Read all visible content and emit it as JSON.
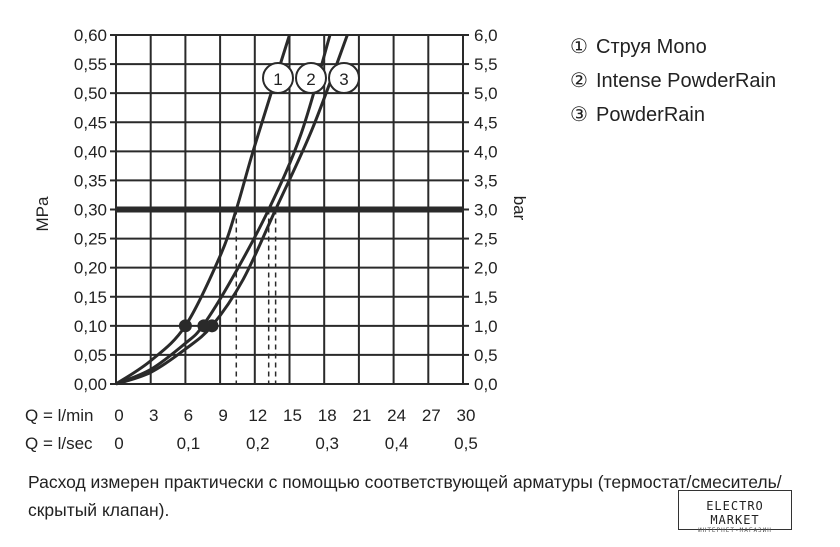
{
  "chart_data": {
    "type": "line",
    "ylabel_left": "MPa",
    "ylabel_right": "bar",
    "ylim": [
      0,
      0.6
    ],
    "xlim": [
      0,
      30
    ],
    "left_ticks": [
      "0,00",
      "0,05",
      "0,10",
      "0,15",
      "0,20",
      "0,25",
      "0,30",
      "0,35",
      "0,40",
      "0,45",
      "0,50",
      "0,55",
      "0,60"
    ],
    "right_ticks": [
      "0,0",
      "0,5",
      "1,0",
      "1,5",
      "2,0",
      "2,5",
      "3,0",
      "3,5",
      "4,0",
      "4,5",
      "5,0",
      "5,5",
      "6,0"
    ],
    "x_row1_label": "Q = l/min",
    "x_row1_ticks": [
      "0",
      "3",
      "6",
      "9",
      "12",
      "15",
      "18",
      "21",
      "24",
      "27",
      "30"
    ],
    "x_row2_label": "Q = l/sec",
    "x_row2_ticks": [
      "0",
      "0,1",
      "0,2",
      "0,3",
      "0,4",
      "0,5"
    ],
    "x_row2_values": [
      0,
      6,
      12,
      18,
      24,
      30
    ],
    "reference_line": 0.3,
    "series": [
      {
        "name": "1",
        "x": [
          0,
          3,
          6,
          9,
          10.4,
          12,
          15
        ],
        "y": [
          0,
          0.04,
          0.1,
          0.22,
          0.3,
          0.41,
          0.6
        ],
        "marker": {
          "x": 6,
          "y": 0.1
        },
        "drop_x": 10.4
      },
      {
        "name": "2",
        "x": [
          0,
          3,
          6,
          7.5,
          10,
          13.2,
          16,
          18.5
        ],
        "y": [
          0,
          0.025,
          0.07,
          0.1,
          0.18,
          0.3,
          0.43,
          0.6
        ],
        "marker": {
          "x": 7.6,
          "y": 0.1
        },
        "drop_x": 13.2
      },
      {
        "name": "3",
        "x": [
          0,
          3,
          6,
          8.3,
          11,
          13.8,
          17,
          20
        ],
        "y": [
          0,
          0.02,
          0.06,
          0.1,
          0.18,
          0.3,
          0.44,
          0.6
        ],
        "marker": {
          "x": 8.3,
          "y": 0.1
        },
        "drop_x": 13.8
      }
    ],
    "grid": true
  },
  "legend": [
    {
      "num": "①",
      "label": "Струя Mono"
    },
    {
      "num": "②",
      "label": "Intense PowderRain"
    },
    {
      "num": "③",
      "label": "PowderRain"
    }
  ],
  "footnote": "Расход измерен практически с помощью соответствующей арматуры (термостат/смеситель/скрытый клапан).",
  "watermark": {
    "title": "ELECTRO MARKET",
    "subtitle": "ИНТЕРНЕТ-МАГАЗИН"
  }
}
